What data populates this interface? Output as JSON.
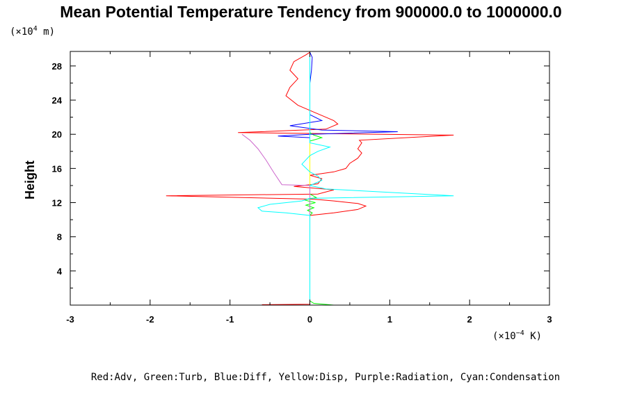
{
  "chart_data": {
    "type": "line",
    "title": "Mean Potential Temperature Tendency from 900000.0 to 1000000.0",
    "ylabel": "Height",
    "y_unit_prefix": "(×10",
    "y_unit_exp": "4",
    "y_unit_suffix": " m)",
    "x_unit_prefix": "(×10",
    "x_unit_exp": "−4",
    "x_unit_suffix": " K)",
    "xlim": [
      -3,
      3
    ],
    "ylim": [
      0,
      29.7
    ],
    "x_ticks": [
      -3,
      -2,
      -1,
      0,
      1,
      2,
      3
    ],
    "x_tick_labels": [
      "-3",
      "-2",
      "-1",
      "0",
      "1",
      "2",
      "3"
    ],
    "y_ticks": [
      4,
      8,
      12,
      16,
      20,
      24,
      28
    ],
    "y_tick_labels": [
      "4",
      "8",
      "12",
      "16",
      "20",
      "24",
      "28"
    ],
    "grid": false,
    "legend_text": "Red:Adv, Green:Turb, Blue:Diff, Yellow:Disp, Purple:Radiation, Cyan:Condensation",
    "series": [
      {
        "name": "Adv",
        "color": "#ff0000",
        "points": [
          [
            0.0,
            0.0
          ],
          [
            -0.6,
            0.05
          ],
          [
            0.0,
            0.1
          ],
          [
            0.0,
            10.5
          ],
          [
            0.3,
            10.8
          ],
          [
            0.6,
            11.2
          ],
          [
            0.7,
            11.6
          ],
          [
            0.6,
            11.9
          ],
          [
            0.3,
            12.2
          ],
          [
            0.05,
            12.4
          ],
          [
            -1.8,
            12.8
          ],
          [
            0.1,
            13.0
          ],
          [
            0.3,
            13.5
          ],
          [
            -0.2,
            13.9
          ],
          [
            0.1,
            14.2
          ],
          [
            0.15,
            14.8
          ],
          [
            0.0,
            15.2
          ],
          [
            0.3,
            15.6
          ],
          [
            0.45,
            16.0
          ],
          [
            0.5,
            16.6
          ],
          [
            0.6,
            17.2
          ],
          [
            0.65,
            17.8
          ],
          [
            0.6,
            18.3
          ],
          [
            0.65,
            19.0
          ],
          [
            0.62,
            19.3
          ],
          [
            1.8,
            19.9
          ],
          [
            -0.9,
            20.2
          ],
          [
            0.2,
            20.6
          ],
          [
            0.35,
            21.2
          ],
          [
            0.3,
            21.6
          ],
          [
            0.15,
            22.2
          ],
          [
            0.05,
            22.6
          ],
          [
            -0.15,
            23.4
          ],
          [
            -0.3,
            24.5
          ],
          [
            -0.25,
            25.5
          ],
          [
            -0.15,
            26.5
          ],
          [
            -0.25,
            27.5
          ],
          [
            -0.2,
            28.5
          ],
          [
            -0.05,
            29.3
          ],
          [
            0.0,
            29.6
          ]
        ]
      },
      {
        "name": "Turb",
        "color": "#00ff00",
        "points": [
          [
            0.3,
            0.0
          ],
          [
            0.05,
            0.2
          ],
          [
            0.0,
            0.5
          ],
          [
            0.0,
            10.5
          ],
          [
            0.03,
            10.8
          ],
          [
            -0.03,
            11.1
          ],
          [
            0.05,
            11.4
          ],
          [
            -0.05,
            11.7
          ],
          [
            0.07,
            12.0
          ],
          [
            -0.07,
            12.3
          ],
          [
            0.08,
            12.6
          ],
          [
            0.0,
            13.0
          ],
          [
            0.0,
            19.2
          ],
          [
            0.15,
            19.6
          ],
          [
            0.05,
            19.9
          ],
          [
            0.0,
            20.2
          ],
          [
            0.0,
            29.6
          ]
        ]
      },
      {
        "name": "Diff",
        "color": "#0000ff",
        "points": [
          [
            0.0,
            0.0
          ],
          [
            0.0,
            19.6
          ],
          [
            -0.4,
            19.8
          ],
          [
            0.0,
            20.0
          ],
          [
            1.1,
            20.3
          ],
          [
            0.15,
            20.5
          ],
          [
            -0.25,
            21.0
          ],
          [
            0.15,
            21.6
          ],
          [
            0.0,
            22.3
          ],
          [
            0.0,
            23.5
          ],
          [
            0.0,
            26.0
          ],
          [
            0.02,
            27.5
          ],
          [
            0.03,
            29.0
          ],
          [
            0.0,
            29.6
          ]
        ]
      },
      {
        "name": "Disp",
        "color": "#ffff00",
        "points": [
          [
            0.0,
            0.0
          ],
          [
            0.0,
            29.6
          ]
        ]
      },
      {
        "name": "Radiation",
        "color": "#cc66cc",
        "points": [
          [
            0.0,
            0.0
          ],
          [
            0.0,
            14.0
          ],
          [
            -0.35,
            14.1
          ],
          [
            -0.45,
            15.5
          ],
          [
            -0.55,
            17.0
          ],
          [
            -0.65,
            18.3
          ],
          [
            -0.75,
            19.3
          ],
          [
            -0.85,
            20.0
          ]
        ]
      },
      {
        "name": "Condensation",
        "color": "#00ffff",
        "points": [
          [
            0.0,
            0.0
          ],
          [
            0.0,
            10.5
          ],
          [
            -0.3,
            10.8
          ],
          [
            -0.6,
            11.0
          ],
          [
            -0.65,
            11.4
          ],
          [
            -0.5,
            11.8
          ],
          [
            -0.1,
            12.2
          ],
          [
            0.0,
            12.5
          ],
          [
            1.8,
            12.8
          ],
          [
            0.2,
            13.6
          ],
          [
            0.0,
            14.0
          ],
          [
            0.15,
            14.6
          ],
          [
            0.1,
            15.1
          ],
          [
            0.0,
            15.6
          ],
          [
            -0.1,
            16.5
          ],
          [
            0.0,
            17.5
          ],
          [
            0.1,
            18.0
          ],
          [
            0.25,
            18.5
          ],
          [
            0.0,
            19.0
          ],
          [
            0.0,
            29.6
          ]
        ]
      }
    ]
  }
}
